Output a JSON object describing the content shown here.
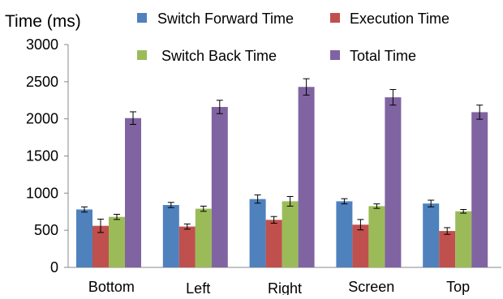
{
  "chart_data": {
    "type": "bar",
    "title": "",
    "ylabel": "Time (ms)",
    "xlabel": "",
    "ylim": [
      0,
      3000
    ],
    "yticks": [
      "0",
      "500",
      "1000",
      "1500",
      "2000",
      "2500",
      "3000"
    ],
    "ytick_values": [
      0,
      500,
      1000,
      1500,
      2000,
      2500,
      3000
    ],
    "grid": false,
    "legend_position": "top",
    "categories": [
      "Bottom",
      "Left",
      "Right",
      "Screen",
      "Top"
    ],
    "series": [
      {
        "name": "Switch Forward Time",
        "color": "#4f81bd",
        "values": [
          780,
          840,
          920,
          890,
          860
        ],
        "errors": [
          35,
          35,
          55,
          35,
          45
        ]
      },
      {
        "name": "Execution Time",
        "color": "#c0504d",
        "values": [
          560,
          550,
          640,
          575,
          490
        ],
        "errors": [
          90,
          35,
          45,
          70,
          45
        ]
      },
      {
        "name": "Switch Back Time",
        "color": "#9bbb59",
        "values": [
          680,
          790,
          890,
          825,
          755
        ],
        "errors": [
          35,
          35,
          65,
          30,
          25
        ]
      },
      {
        "name": "Total Time",
        "color": "#8064a2",
        "values": [
          2010,
          2160,
          2430,
          2290,
          2090
        ],
        "errors": [
          85,
          90,
          110,
          105,
          95
        ]
      }
    ]
  }
}
